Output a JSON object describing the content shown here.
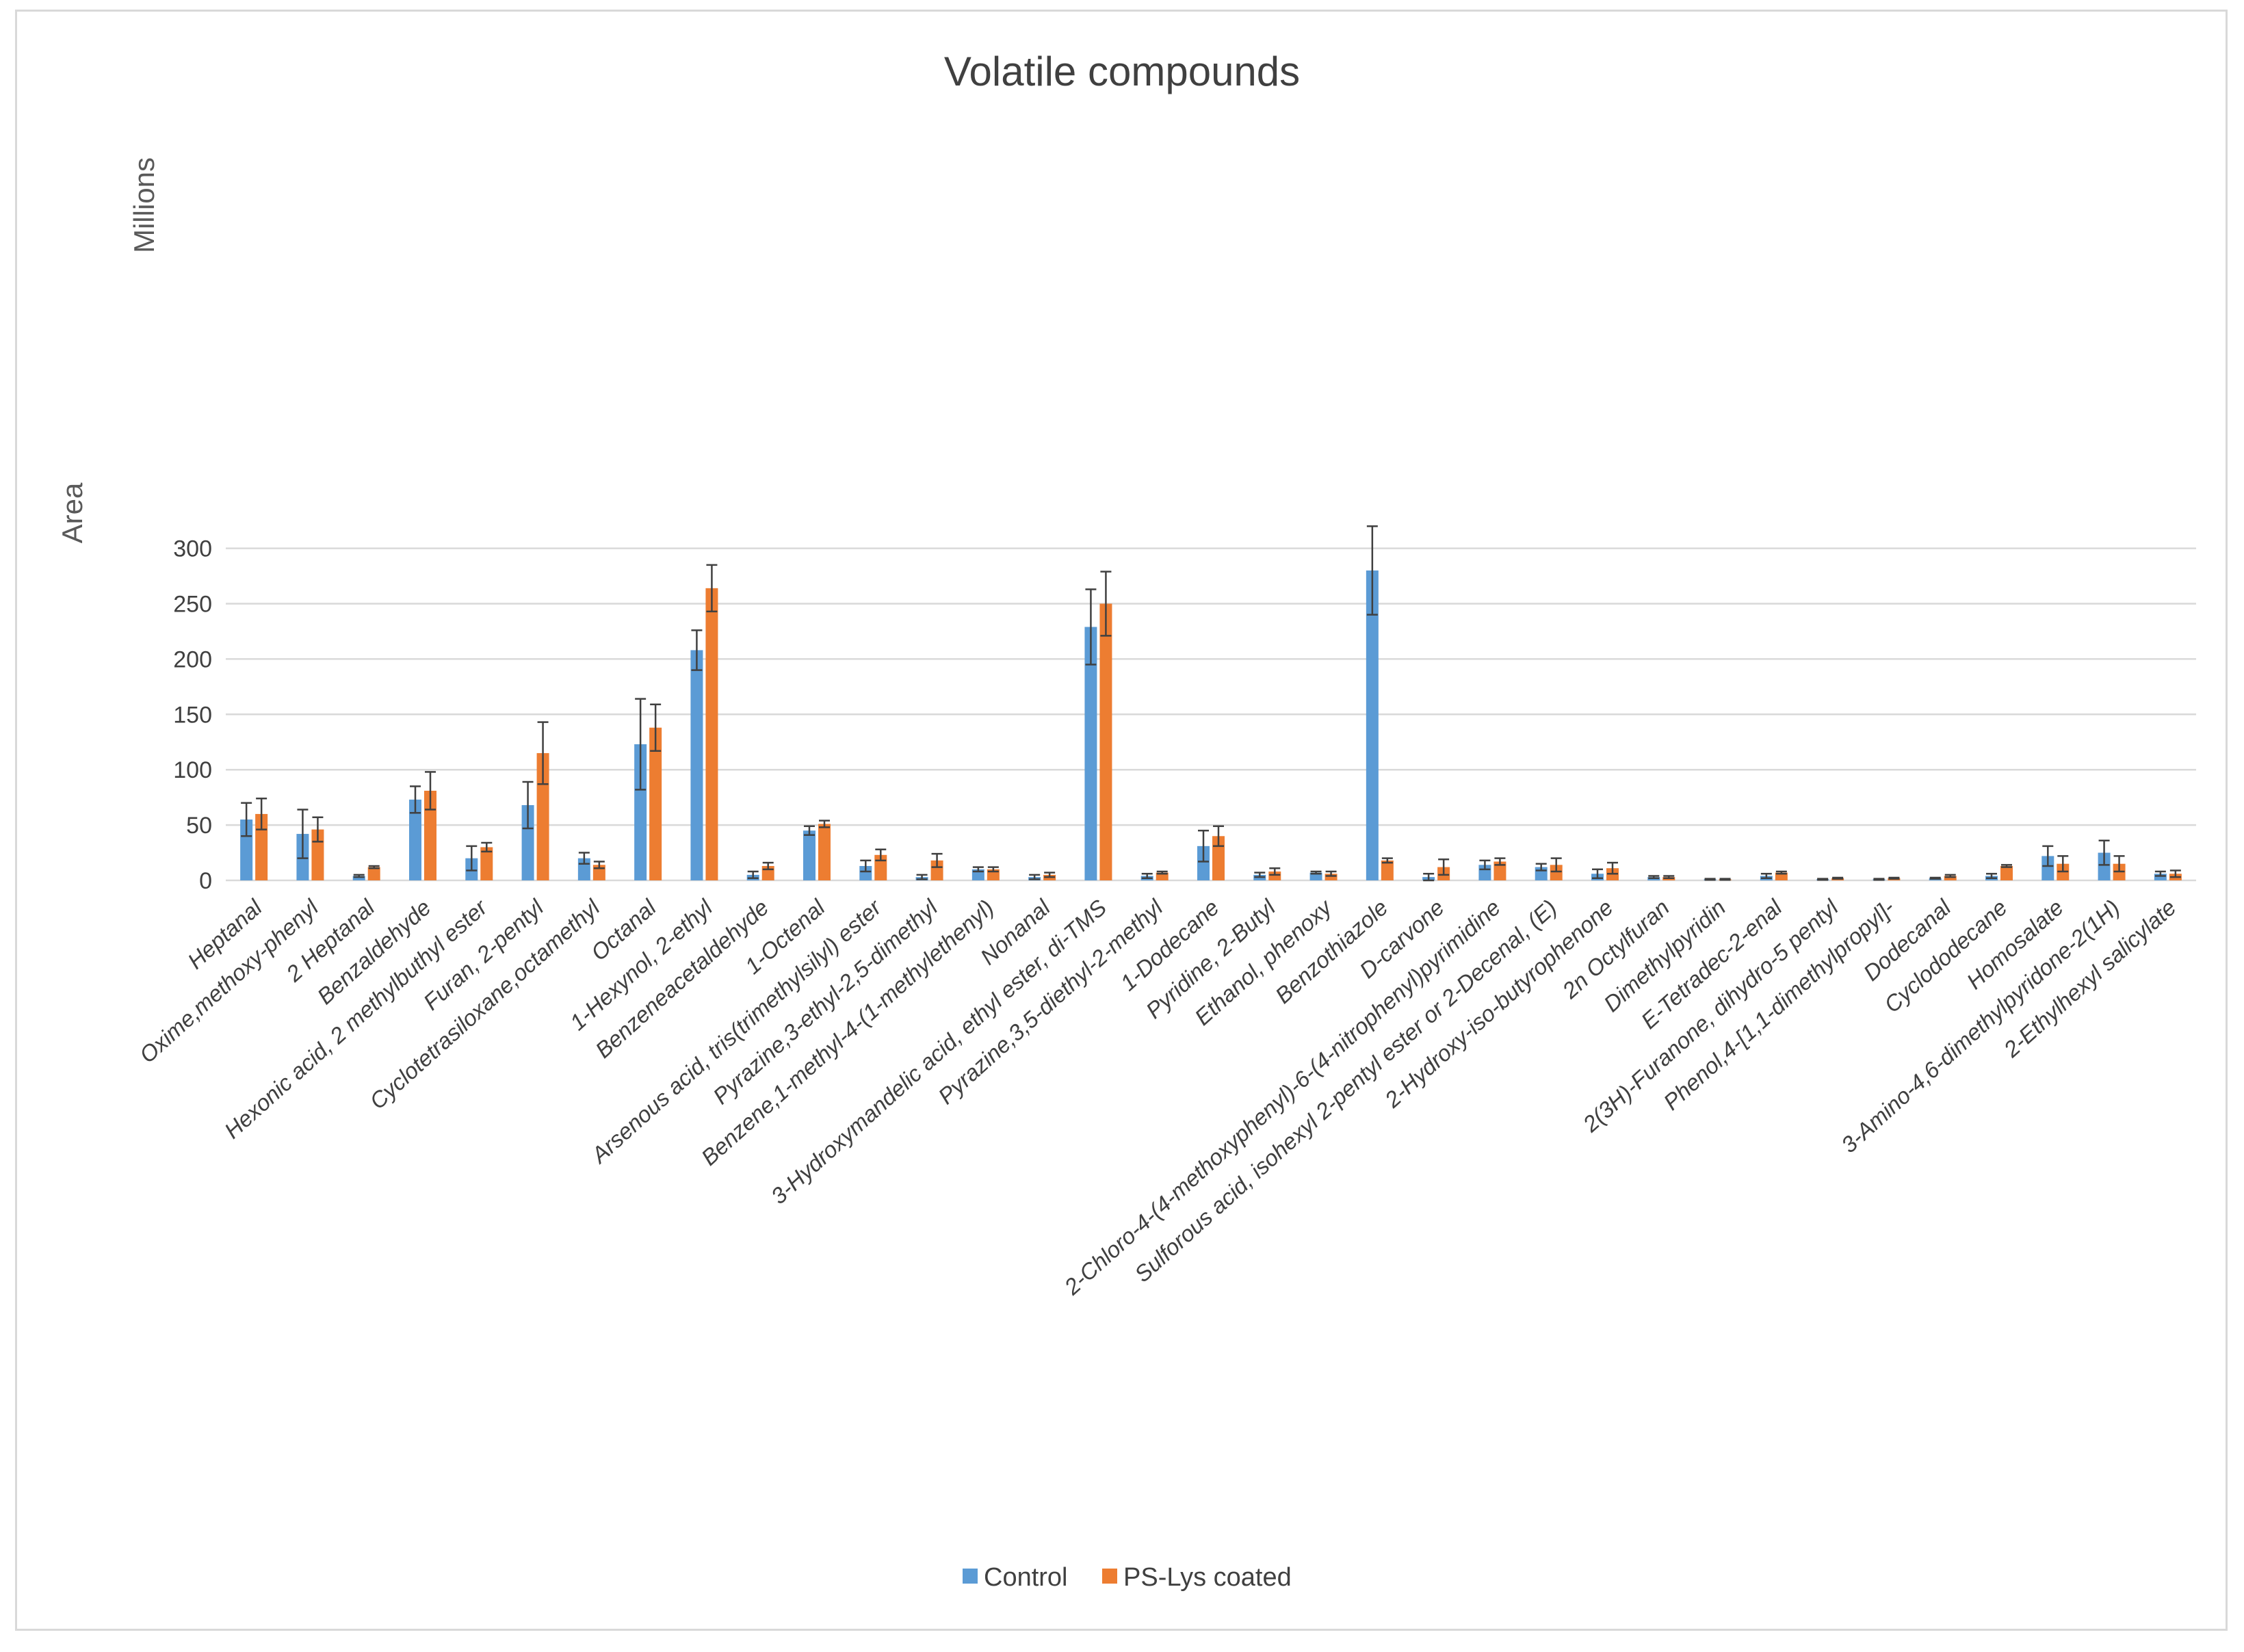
{
  "chart_data": {
    "type": "bar",
    "title": "Volatile compounds",
    "xlabel": "",
    "ylabel": "Area",
    "yunit_label": "Millions",
    "ylim": [
      0,
      300
    ],
    "yticks": [
      0,
      50,
      100,
      150,
      200,
      250,
      300
    ],
    "grid": true,
    "legend_position": "bottom",
    "categories": [
      "Heptanal",
      "Oxime,methoxy-phenyl",
      "2 Heptanal",
      "Benzaldehyde",
      "Hexonic acid, 2 methylbuthyl ester",
      "Furan, 2-pentyl",
      "Cyclotetrasiloxane,octamethyl",
      "Octanal",
      "1-Hexynol, 2-ethyl",
      "Benzeneacetaldehyde",
      "1-Octenal",
      "Arsenous acid, tris(trimethylsilyl) ester",
      "Pyrazine,3-ethyl-2,5-dimethyl",
      "Benzene,1-methyl-4-(1-methylethenyl)",
      "Nonanal",
      "3-Hydroxymandelic acid, ethyl ester, di-TMS",
      "Pyrazine,3,5-diethyl-2-methyl",
      "1-Dodecane",
      "Pyridine, 2-Butyl",
      "Ethanol, phenoxy",
      "Benzothiazole",
      "D-carvone",
      "2-Chloro-4-(4-methoxyphenyl)-6-(4-nitrophenyl)pyrimidine",
      "Sulforous acid, isohexyl 2-pentyl ester or 2-Decenal, (E)",
      "2-Hydroxy-iso-butyrophenone",
      "2n Octylfuran",
      "Dimethylpyridin",
      "E-Tetradec-2-enal",
      "2(3H)-Furanone, dihydro-5 pentyl",
      "Phenol,4-[1,1-dimethylpropyl]-",
      "Dodecanal",
      "Cyclododecane",
      "Homosalate",
      "3-Amino-4,6-dimethylpyridone-2(1H)",
      "2-Ethylhexyl salicylate"
    ],
    "series": [
      {
        "name": "Control",
        "color": "#5b9bd5",
        "values": [
          55,
          42,
          4,
          73,
          20,
          68,
          20,
          123,
          208,
          5,
          45,
          13,
          3,
          10,
          3,
          229,
          4,
          31,
          5,
          7,
          280,
          3,
          14,
          12,
          6,
          3,
          1,
          4,
          1,
          1,
          2,
          4,
          22,
          25,
          6
        ],
        "errors": [
          15,
          22,
          1,
          12,
          11,
          21,
          5,
          41,
          18,
          3,
          4,
          5,
          2,
          2,
          2,
          34,
          2,
          14,
          2,
          1,
          40,
          3,
          4,
          3,
          4,
          1,
          0.5,
          2,
          0.5,
          0.5,
          0.5,
          2,
          9,
          11,
          2
        ]
      },
      {
        "name": "PS-Lys coated",
        "color": "#ed7d31",
        "values": [
          60,
          46,
          12,
          81,
          30,
          115,
          14,
          138,
          264,
          13,
          51,
          23,
          18,
          10,
          5,
          250,
          7,
          40,
          8,
          6,
          18,
          12,
          17,
          14,
          11,
          3,
          1,
          7,
          2,
          2,
          4,
          13,
          15,
          15,
          6
        ],
        "errors": [
          14,
          11,
          1,
          17,
          4,
          28,
          3,
          21,
          21,
          3,
          3,
          5,
          6,
          2,
          2,
          29,
          1,
          9,
          3,
          2,
          2,
          7,
          3,
          6,
          5,
          1,
          0.5,
          1,
          0.5,
          0.5,
          1,
          1,
          7,
          7,
          3
        ]
      }
    ]
  }
}
